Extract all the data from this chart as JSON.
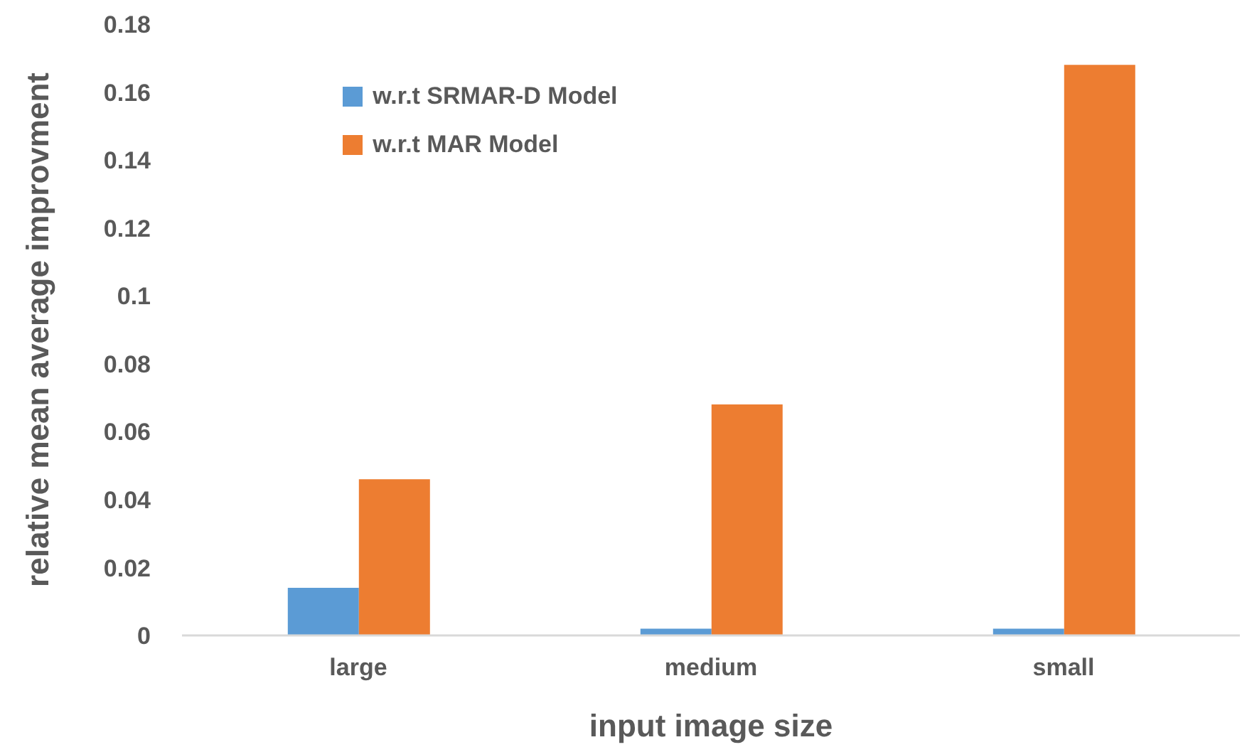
{
  "chart_data": {
    "type": "bar",
    "xlabel": "input image size",
    "ylabel": "relative mean average improvment",
    "categories": [
      "large",
      "medium",
      "small"
    ],
    "series": [
      {
        "name": "w.r.t SRMAR-D Model",
        "color": "#5b9bd5",
        "values": [
          0.014,
          0.002,
          0.002
        ]
      },
      {
        "name": "w.r.t MAR Model",
        "color": "#ed7d31",
        "values": [
          0.046,
          0.068,
          0.168
        ]
      }
    ],
    "ylim": [
      0,
      0.18
    ],
    "yticks": [
      0,
      0.02,
      0.04,
      0.06,
      0.08,
      0.1,
      0.12,
      0.14,
      0.16,
      0.18
    ],
    "legend": "top left"
  }
}
